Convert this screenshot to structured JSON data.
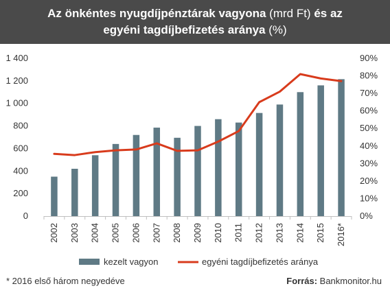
{
  "title": {
    "line1_bold_a": "Az önkéntes nyugdíjpénztárak vagyona",
    "line1_normal": " (mrd Ft) ",
    "line1_bold_b": "és az",
    "line2_bold": "egyéni tagdíjbefizetés aránya",
    "line2_normal": " (%)"
  },
  "chart_data": {
    "type": "bar+line",
    "categories": [
      "2002",
      "2003",
      "2004",
      "2005",
      "2006",
      "2007",
      "2008",
      "2009",
      "2010",
      "2011",
      "2012",
      "2013",
      "2014",
      "2015",
      "2016*"
    ],
    "series": [
      {
        "name": "kezelt vagyon",
        "type": "bar",
        "axis": "left",
        "color": "#5f7a85",
        "values": [
          350,
          420,
          540,
          640,
          720,
          785,
          695,
          800,
          860,
          830,
          915,
          990,
          1100,
          1160,
          1215
        ]
      },
      {
        "name": "egyéni tagdíjbefizetés aránya",
        "type": "line",
        "axis": "right",
        "color": "#d83b1c",
        "values": [
          35.5,
          34.8,
          36.5,
          37.5,
          38.0,
          41.5,
          37.2,
          37.5,
          42.5,
          48.5,
          65.0,
          71.0,
          81.0,
          78.5,
          77.0
        ]
      }
    ],
    "yleft": {
      "lim": [
        0,
        1400
      ],
      "ticks": [
        "0",
        "200",
        "400",
        "600",
        "800",
        "1 000",
        "1 200",
        "1 400"
      ],
      "tick_values": [
        0,
        200,
        400,
        600,
        800,
        1000,
        1200,
        1400
      ]
    },
    "yright": {
      "lim": [
        0,
        90
      ],
      "ticks": [
        "0%",
        "10%",
        "20%",
        "30%",
        "40%",
        "50%",
        "60%",
        "70%",
        "80%",
        "90%"
      ],
      "tick_values": [
        0,
        10,
        20,
        30,
        40,
        50,
        60,
        70,
        80,
        90
      ]
    },
    "grid": false,
    "legend_position": "bottom"
  },
  "footnote": "* 2016 első három negyedéve",
  "source": {
    "label": "Forrás:",
    "value": " Bankmonitor.hu"
  }
}
